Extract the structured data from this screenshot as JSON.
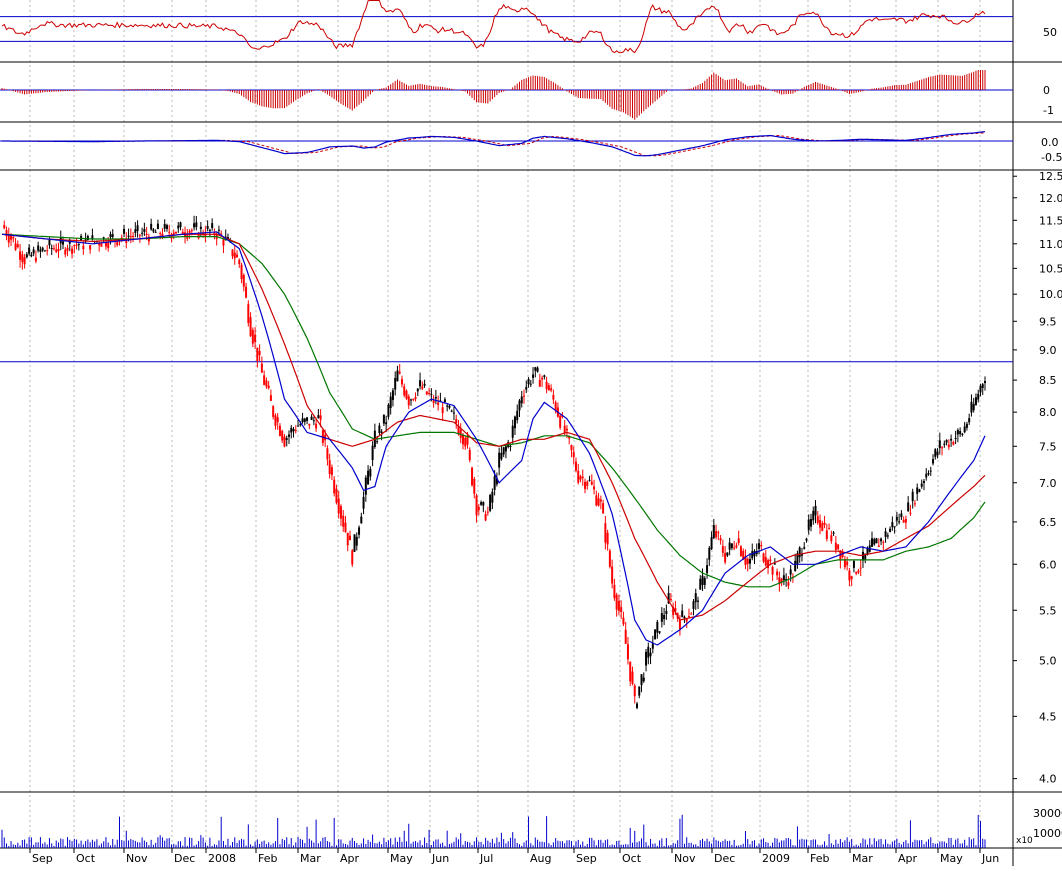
{
  "chart_data": {
    "type": "candlestick",
    "x_months": [
      "Sep",
      "Oct",
      "Nov",
      "Dec",
      "2008",
      "Feb",
      "Mar",
      "Apr",
      "May",
      "Jun",
      "Jul",
      "Aug",
      "Sep",
      "Oct",
      "Nov",
      "Dec",
      "2009",
      "Feb",
      "Mar",
      "Apr",
      "May",
      "Jun"
    ],
    "price_axis": {
      "scale": "log",
      "ylim": [
        3.9,
        12.6
      ],
      "ticks": [
        "12.5",
        "12.0",
        "11.5",
        "11.0",
        "10.5",
        "10.0",
        "9.5",
        "9.0",
        "8.5",
        "8.0",
        "7.5",
        "7.0",
        "6.5",
        "6.0",
        "5.5",
        "5.0",
        "4.5",
        "4.0"
      ],
      "reference_line": 8.8
    },
    "price_series": {
      "close_points": [
        [
          0,
          11.4
        ],
        [
          2,
          10.7
        ],
        [
          4,
          10.9
        ],
        [
          8,
          11.05
        ],
        [
          12,
          11.2
        ],
        [
          16,
          11.3
        ],
        [
          19,
          11.25
        ],
        [
          20,
          11.0
        ],
        [
          21,
          10.6
        ],
        [
          22,
          9.4
        ],
        [
          23,
          8.6
        ],
        [
          24,
          8.0
        ],
        [
          25,
          7.6
        ],
        [
          26,
          7.8
        ],
        [
          28,
          7.9
        ],
        [
          29,
          7.2
        ],
        [
          30,
          6.6
        ],
        [
          31,
          6.1
        ],
        [
          32,
          6.8
        ],
        [
          33,
          7.6
        ],
        [
          34,
          7.9
        ],
        [
          35,
          8.6
        ],
        [
          36,
          8.2
        ],
        [
          37,
          8.4
        ],
        [
          38,
          8.2
        ],
        [
          39,
          8.1
        ],
        [
          40,
          7.9
        ],
        [
          41,
          7.6
        ],
        [
          42,
          6.7
        ],
        [
          43,
          6.6
        ],
        [
          44,
          7.3
        ],
        [
          45,
          7.6
        ],
        [
          46,
          8.3
        ],
        [
          47,
          8.6
        ],
        [
          48,
          8.5
        ],
        [
          49,
          8.1
        ],
        [
          50,
          7.6
        ],
        [
          51,
          7.1
        ],
        [
          52,
          7.0
        ],
        [
          53,
          6.7
        ],
        [
          54,
          5.8
        ],
        [
          55,
          5.3
        ],
        [
          56,
          4.6
        ],
        [
          57,
          5.0
        ],
        [
          58,
          5.3
        ],
        [
          59,
          5.6
        ],
        [
          60,
          5.4
        ],
        [
          61,
          5.5
        ],
        [
          62,
          5.8
        ],
        [
          63,
          6.4
        ],
        [
          64,
          6.1
        ],
        [
          65,
          6.3
        ],
        [
          66,
          6.0
        ],
        [
          67,
          6.2
        ],
        [
          68,
          6.0
        ],
        [
          69,
          5.8
        ],
        [
          70,
          5.9
        ],
        [
          71,
          6.3
        ],
        [
          72,
          6.6
        ],
        [
          73,
          6.4
        ],
        [
          74,
          6.2
        ],
        [
          75,
          5.9
        ],
        [
          76,
          6.0
        ],
        [
          77,
          6.2
        ],
        [
          78,
          6.3
        ],
        [
          79,
          6.5
        ],
        [
          80,
          6.6
        ],
        [
          81,
          6.9
        ],
        [
          82,
          7.2
        ],
        [
          83,
          7.5
        ],
        [
          84,
          7.6
        ],
        [
          85,
          7.7
        ],
        [
          86,
          8.1
        ],
        [
          87,
          8.6
        ]
      ],
      "ma_short_color": "#0000cc",
      "ma_mid_color": "#cc0000",
      "ma_long_color": "#007700",
      "ma_short": [
        [
          0,
          11.2
        ],
        [
          4,
          11.1
        ],
        [
          8,
          11.0
        ],
        [
          12,
          11.1
        ],
        [
          16,
          11.2
        ],
        [
          19,
          11.25
        ],
        [
          21,
          10.9
        ],
        [
          23,
          9.6
        ],
        [
          25,
          8.2
        ],
        [
          27,
          7.7
        ],
        [
          29,
          7.6
        ],
        [
          31,
          7.2
        ],
        [
          32,
          6.9
        ],
        [
          33,
          6.95
        ],
        [
          34,
          7.5
        ],
        [
          36,
          8.0
        ],
        [
          38,
          8.2
        ],
        [
          40,
          8.1
        ],
        [
          42,
          7.6
        ],
        [
          44,
          7.0
        ],
        [
          46,
          7.3
        ],
        [
          47,
          7.9
        ],
        [
          48,
          8.15
        ],
        [
          50,
          7.9
        ],
        [
          52,
          7.4
        ],
        [
          54,
          6.6
        ],
        [
          55,
          6.0
        ],
        [
          56,
          5.4
        ],
        [
          57,
          5.2
        ],
        [
          58,
          5.15
        ],
        [
          60,
          5.3
        ],
        [
          62,
          5.5
        ],
        [
          64,
          5.9
        ],
        [
          66,
          6.1
        ],
        [
          68,
          6.2
        ],
        [
          70,
          6.0
        ],
        [
          72,
          6.0
        ],
        [
          74,
          6.1
        ],
        [
          76,
          6.2
        ],
        [
          78,
          6.15
        ],
        [
          80,
          6.2
        ],
        [
          82,
          6.5
        ],
        [
          84,
          6.9
        ],
        [
          86,
          7.3
        ],
        [
          87,
          7.65
        ]
      ],
      "ma_mid": [
        [
          0,
          11.2
        ],
        [
          4,
          11.1
        ],
        [
          8,
          11.05
        ],
        [
          12,
          11.1
        ],
        [
          16,
          11.2
        ],
        [
          19,
          11.2
        ],
        [
          21,
          11.0
        ],
        [
          23,
          10.1
        ],
        [
          25,
          9.1
        ],
        [
          27,
          8.1
        ],
        [
          29,
          7.6
        ],
        [
          31,
          7.5
        ],
        [
          33,
          7.6
        ],
        [
          35,
          7.85
        ],
        [
          37,
          7.95
        ],
        [
          40,
          7.85
        ],
        [
          42,
          7.55
        ],
        [
          44,
          7.5
        ],
        [
          46,
          7.6
        ],
        [
          48,
          7.6
        ],
        [
          50,
          7.7
        ],
        [
          52,
          7.6
        ],
        [
          54,
          7.0
        ],
        [
          56,
          6.3
        ],
        [
          58,
          5.8
        ],
        [
          60,
          5.4
        ],
        [
          62,
          5.45
        ],
        [
          64,
          5.6
        ],
        [
          66,
          5.8
        ],
        [
          68,
          6.0
        ],
        [
          70,
          6.1
        ],
        [
          72,
          6.15
        ],
        [
          74,
          6.15
        ],
        [
          76,
          6.1
        ],
        [
          78,
          6.15
        ],
        [
          80,
          6.3
        ],
        [
          82,
          6.45
        ],
        [
          84,
          6.7
        ],
        [
          86,
          6.95
        ],
        [
          87,
          7.1
        ]
      ],
      "ma_long": [
        [
          0,
          11.2
        ],
        [
          4,
          11.15
        ],
        [
          8,
          11.1
        ],
        [
          12,
          11.1
        ],
        [
          16,
          11.15
        ],
        [
          19,
          11.15
        ],
        [
          21,
          11.0
        ],
        [
          23,
          10.6
        ],
        [
          25,
          10.0
        ],
        [
          27,
          9.2
        ],
        [
          29,
          8.3
        ],
        [
          31,
          7.75
        ],
        [
          33,
          7.6
        ],
        [
          35,
          7.65
        ],
        [
          37,
          7.7
        ],
        [
          40,
          7.7
        ],
        [
          42,
          7.6
        ],
        [
          44,
          7.5
        ],
        [
          46,
          7.55
        ],
        [
          48,
          7.65
        ],
        [
          50,
          7.65
        ],
        [
          52,
          7.55
        ],
        [
          54,
          7.2
        ],
        [
          56,
          6.8
        ],
        [
          58,
          6.4
        ],
        [
          60,
          6.1
        ],
        [
          62,
          5.9
        ],
        [
          64,
          5.8
        ],
        [
          66,
          5.75
        ],
        [
          68,
          5.75
        ],
        [
          70,
          5.85
        ],
        [
          72,
          6.0
        ],
        [
          74,
          6.05
        ],
        [
          76,
          6.05
        ],
        [
          78,
          6.05
        ],
        [
          80,
          6.15
        ],
        [
          82,
          6.2
        ],
        [
          84,
          6.3
        ],
        [
          86,
          6.55
        ],
        [
          87,
          6.75
        ]
      ]
    },
    "indicator_oscillator": {
      "axis_ticks": [
        "50"
      ],
      "bands": [
        70,
        30
      ],
      "line_color": "#cc0000"
    },
    "indicator_histogram": {
      "axis_ticks": [
        "0",
        "-1"
      ],
      "bar_color": "#cc0000"
    },
    "indicator_macd": {
      "axis_ticks": [
        "0.0",
        "-0.5"
      ],
      "line_color": "#0000cc",
      "signal_color": "#cc0000"
    },
    "volume": {
      "axis_ticks": [
        "30000",
        "10000"
      ],
      "multiplier_label": "x10",
      "bar_color": "#0000cc"
    }
  }
}
